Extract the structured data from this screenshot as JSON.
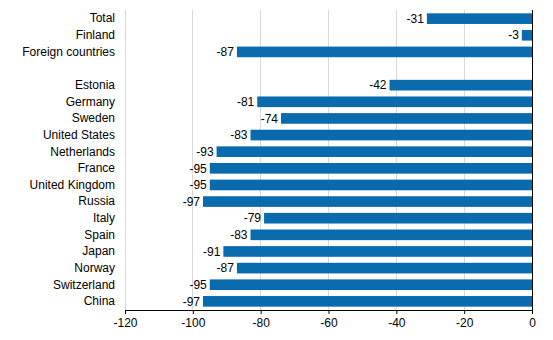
{
  "chart_data": {
    "type": "bar",
    "orientation": "horizontal",
    "categories": [
      "Total",
      "Finland",
      "Foreign countries",
      null,
      "Estonia",
      "Germany",
      "Sweden",
      "United States",
      "Netherlands",
      "France",
      "United Kingdom",
      "Russia",
      "Italy",
      "Spain",
      "Japan",
      "Norway",
      "Switzerland",
      "China"
    ],
    "values": [
      -31,
      -3,
      -87,
      null,
      -42,
      -81,
      -74,
      -83,
      -93,
      -95,
      -95,
      -97,
      -79,
      -83,
      -91,
      -87,
      -95,
      -97
    ],
    "color": "#0a6aae",
    "xlim": [
      -120,
      0
    ],
    "xticks": [
      -120,
      -100,
      -80,
      -60,
      -40,
      -20,
      0
    ],
    "grid": true,
    "data_labels": true
  }
}
